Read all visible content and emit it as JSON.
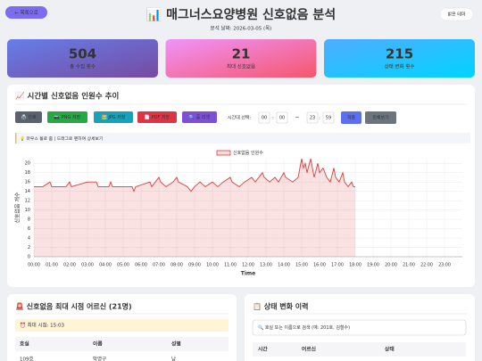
{
  "header": {
    "back_button": "← 목록으로",
    "title": "📊 매그너스요양병원 신호없음 분석",
    "subtitle": "분석 날짜: 2026-03-05 (목)",
    "theme_button": "밝은 테마"
  },
  "stats": [
    {
      "value": 504,
      "label": "총 수집 횟수"
    },
    {
      "value": 21,
      "label": "최대 신호없음"
    },
    {
      "value": 215,
      "label": "상태 변화 횟수"
    }
  ],
  "chart_panel": {
    "title": "📈 시간별 신호없음 인원수 추이",
    "buttons": [
      "🖨️ 인쇄",
      "📷 PNG 저장",
      "🖼️ JPG 저장",
      "📄 PDF 저장",
      "🔍 줌 리셋"
    ],
    "time_range": {
      "label": "시간대 선택:",
      "start_hour": "00",
      "start_minute": "00",
      "time_separator": ":",
      "range_separator": "~",
      "end_hour": "23",
      "end_minute": "59",
      "apply": "적용",
      "reset": "전체보기"
    },
    "hint": "💡 마우스 휠로 줌 | 드래그로 팬하여 상세보기"
  },
  "chart_data": {
    "type": "line",
    "x": [
      0,
      0.5,
      0.9,
      1.0,
      1.8,
      2.0,
      2.1,
      3.0,
      3.5,
      3.6,
      4.2,
      4.3,
      4.4,
      5.5,
      5.6,
      5.7,
      6.5,
      6.6,
      7.0,
      7.1,
      7.4,
      7.8,
      8.0,
      8.1,
      8.6,
      8.8,
      9.0,
      9.3,
      9.6,
      10.0,
      10.3,
      10.6,
      11.0,
      11.1,
      11.5,
      11.8,
      12.2,
      12.4,
      12.8,
      12.9,
      13.2,
      13.5,
      13.7,
      14.0,
      14.1,
      14.5,
      14.8,
      15.0,
      15.1,
      15.2,
      15.3,
      15.5,
      15.6,
      15.7,
      15.9,
      16.0,
      16.2,
      16.4,
      16.6,
      16.8,
      16.9,
      17.1,
      17.3,
      17.4,
      17.6,
      17.8,
      17.9,
      18.0
    ],
    "series": [
      {
        "name": "신호없음 인원수",
        "color": "#e03c3c",
        "values": [
          15,
          15,
          16,
          15,
          15,
          16,
          15,
          16,
          16,
          15,
          15,
          16,
          15,
          15,
          14,
          15,
          16,
          15,
          17,
          16,
          15,
          16,
          17,
          16,
          15,
          14,
          15,
          16,
          15,
          16,
          15,
          16,
          17,
          16,
          15,
          16,
          17,
          16,
          18,
          17,
          16,
          17,
          16,
          18,
          17,
          16,
          17,
          21,
          19,
          20,
          18,
          21,
          19,
          17,
          20,
          18,
          19,
          17,
          16,
          19,
          17,
          16,
          18,
          16,
          15,
          16,
          15,
          15
        ]
      }
    ],
    "xlabel": "Time",
    "ylabel": "신호없음 개수",
    "xlim": [
      0,
      24
    ],
    "ylim": [
      0,
      21
    ],
    "xticks": [
      {
        "value": 0,
        "label": "00:00"
      },
      {
        "value": 1,
        "label": "01:00"
      },
      {
        "value": 2,
        "label": "02:00"
      },
      {
        "value": 3,
        "label": "03:00"
      },
      {
        "value": 4,
        "label": "04:00"
      },
      {
        "value": 5,
        "label": "05:00"
      },
      {
        "value": 6,
        "label": "06:00"
      },
      {
        "value": 7,
        "label": "07:00"
      },
      {
        "value": 8,
        "label": "08:00"
      },
      {
        "value": 9,
        "label": "09:00"
      },
      {
        "value": 10,
        "label": "10:00"
      },
      {
        "value": 11,
        "label": "11:00"
      },
      {
        "value": 12,
        "label": "12:00"
      },
      {
        "value": 13,
        "label": "13:00"
      },
      {
        "value": 14,
        "label": "14:00"
      },
      {
        "value": 15,
        "label": "15:00"
      },
      {
        "value": 16,
        "label": "16:00"
      },
      {
        "value": 17,
        "label": "17:00"
      },
      {
        "value": 18,
        "label": "18:00"
      },
      {
        "value": 19,
        "label": "19:00"
      },
      {
        "value": 20,
        "label": "20:00"
      },
      {
        "value": 21,
        "label": "21:00"
      },
      {
        "value": 22,
        "label": "22:00"
      },
      {
        "value": 23,
        "label": "23:00"
      }
    ],
    "yticks": [
      0,
      2,
      4,
      6,
      8,
      10,
      12,
      14,
      16,
      18,
      20
    ],
    "grid": true,
    "legend": "top"
  },
  "max_panel": {
    "title": "🚨 신호없음 최대 시점 어르신 (21명)",
    "max_time": "⏰ 최대 시점: 15:03",
    "table": {
      "headers": [
        "호실",
        "이름",
        "성별"
      ],
      "rows": [
        [
          "109호",
          "박영구",
          "남"
        ]
      ]
    }
  },
  "history_panel": {
    "title": "📋 상태 변화 이력",
    "search_placeholder": "🔍 호실 또는 이름으로 검색 (예: 201호, 김철수)",
    "table": {
      "headers": [
        "시간",
        "어르신",
        "상태"
      ]
    }
  }
}
